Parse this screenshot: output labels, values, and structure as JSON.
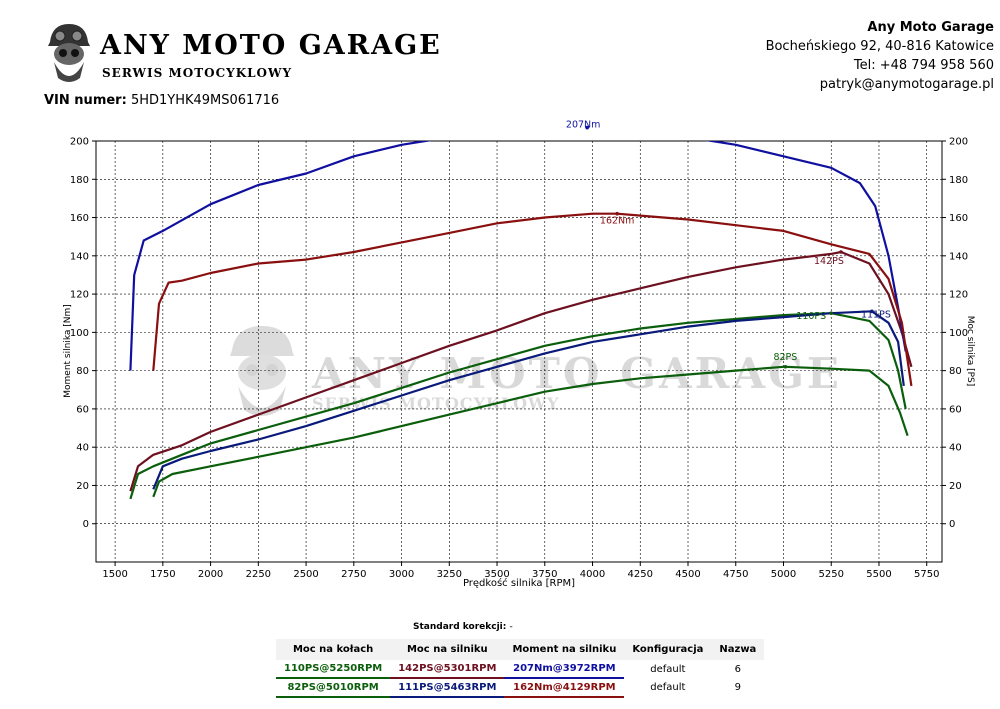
{
  "header": {
    "logo_title": "ANY MOTO GARAGE",
    "logo_subtitle": "SERWIS MOTOCYKLOWY",
    "vin_label": "VIN numer:",
    "vin_value": "5HD1YHK49MS061716"
  },
  "company": {
    "name": "Any Moto Garage",
    "address": "Bocheńskiego 92, 40-816 Katowice",
    "phone": "Tel: +48 794 958 560",
    "email": "patryk@anymotogarage.pl"
  },
  "watermark": {
    "title": "ANY MOTO GARAGE",
    "subtitle": "SERWIS MOTOCYKLOWY"
  },
  "colors": {
    "green": "#0b5e0b",
    "maroon": "#6d1020",
    "navy": "#0a1a7a",
    "red": "#9a1414",
    "blue": "#1010a0",
    "darkred": "#8a1010"
  },
  "chart_data": {
    "type": "line",
    "xlabel": "Prędkość silnika [RPM]",
    "ylabel_left": "Moment silnika [Nm]",
    "ylabel_right": "Moc silnika [PS]",
    "xlim": [
      1400,
      5830
    ],
    "ylim": [
      -20,
      200
    ],
    "x_ticks": [
      1500,
      1750,
      2000,
      2250,
      2500,
      2750,
      3000,
      3250,
      3500,
      3750,
      4000,
      4250,
      4500,
      4750,
      5000,
      5250,
      5500,
      5750
    ],
    "y_ticks": [
      0,
      20,
      40,
      60,
      80,
      100,
      120,
      140,
      160,
      180,
      200
    ],
    "grid": true,
    "series": [
      {
        "color": "#0b5e0b",
        "x": [
          1580,
          1620,
          1700,
          1850,
          2000,
          2250,
          2500,
          2750,
          3000,
          3250,
          3500,
          3750,
          4000,
          4250,
          4500,
          4750,
          5000,
          5250,
          5450,
          5550,
          5600,
          5640
        ],
        "y": [
          13,
          26,
          30,
          36,
          42,
          49,
          56,
          63,
          71,
          79,
          86,
          93,
          98,
          102,
          105,
          107,
          109,
          110,
          106,
          96,
          80,
          60
        ]
      },
      {
        "color": "#6d1020",
        "x": [
          1580,
          1620,
          1700,
          1850,
          2000,
          2250,
          2500,
          2750,
          3000,
          3250,
          3500,
          3750,
          4000,
          4250,
          4500,
          4750,
          5000,
          5250,
          5301,
          5450,
          5550,
          5620,
          5670
        ],
        "y": [
          17,
          30,
          36,
          41,
          48,
          57,
          66,
          75,
          84,
          93,
          101,
          110,
          117,
          123,
          129,
          134,
          138,
          141,
          142,
          136,
          120,
          100,
          82
        ]
      },
      {
        "color": "#0a1a7a",
        "x": [
          1700,
          1750,
          1850,
          2000,
          2250,
          2500,
          2750,
          3000,
          3250,
          3500,
          3750,
          4000,
          4250,
          4500,
          4750,
          5000,
          5250,
          5463,
          5550,
          5600,
          5630
        ],
        "y": [
          18,
          30,
          34,
          38,
          44,
          51,
          59,
          67,
          75,
          82,
          89,
          95,
          99,
          103,
          106,
          108,
          110,
          111,
          105,
          95,
          72
        ]
      },
      {
        "color": "#0b5e0b",
        "x": [
          1700,
          1730,
          1800,
          2000,
          2250,
          2500,
          2750,
          3000,
          3250,
          3500,
          3750,
          4000,
          4250,
          4500,
          4750,
          5000,
          5010,
          5250,
          5450,
          5550,
          5610,
          5650
        ],
        "y": [
          14,
          22,
          26,
          30,
          35,
          40,
          45,
          51,
          57,
          63,
          69,
          73,
          76,
          78,
          80,
          82,
          82,
          81,
          80,
          72,
          58,
          46
        ]
      },
      {
        "color": "#1010a0",
        "x": [
          1580,
          1600,
          1650,
          1750,
          2000,
          2250,
          2500,
          2750,
          3000,
          3250,
          3500,
          3750,
          3972,
          4250,
          4500,
          4750,
          5000,
          5250,
          5400,
          5480,
          5550,
          5600,
          5640
        ],
        "y": [
          80,
          130,
          148,
          153,
          167,
          177,
          183,
          192,
          198,
          202,
          205,
          206,
          207,
          206,
          202,
          198,
          192,
          186,
          178,
          166,
          140,
          113,
          90
        ]
      },
      {
        "color": "#8a1010",
        "x": [
          1700,
          1730,
          1780,
          1850,
          2000,
          2250,
          2500,
          2750,
          3000,
          3250,
          3500,
          3750,
          4000,
          4129,
          4250,
          4500,
          4750,
          5000,
          5250,
          5450,
          5550,
          5620,
          5670
        ],
        "y": [
          80,
          115,
          126,
          127,
          131,
          136,
          138,
          142,
          147,
          152,
          157,
          160,
          162,
          162,
          161,
          159,
          156,
          153,
          146,
          141,
          128,
          105,
          72
        ]
      }
    ],
    "annotations": [
      {
        "text": "207Nm",
        "x": 3972,
        "y": 207,
        "color": "#1010a0"
      },
      {
        "text": "162Nm",
        "x": 4129,
        "y": 162,
        "color": "#8a1010"
      },
      {
        "text": "142PS",
        "x": 5301,
        "y": 142,
        "color": "#6d1020"
      },
      {
        "text": "110PS",
        "x": 5250,
        "y": 110,
        "color": "#0b5e0b"
      },
      {
        "text": "111PS",
        "x": 5463,
        "y": 111,
        "color": "#0a1a7a"
      },
      {
        "text": "82PS",
        "x": 5010,
        "y": 82,
        "color": "#0b5e0b"
      }
    ]
  },
  "results": {
    "korekcji_label": "Standard korekcji:",
    "korekcji_value": "-",
    "headers": [
      "Moc na kołach",
      "Moc na silniku",
      "Moment na silniku",
      "Konfiguracja",
      "Nazwa"
    ],
    "rows": [
      {
        "wheel": "110PS@5250RPM",
        "engine": "142PS@5301RPM",
        "torque": "207Nm@3972RPM",
        "config": "default",
        "name": "6"
      },
      {
        "wheel": "82PS@5010RPM",
        "engine": "111PS@5463RPM",
        "torque": "162Nm@4129RPM",
        "config": "default",
        "name": "9"
      }
    ]
  }
}
